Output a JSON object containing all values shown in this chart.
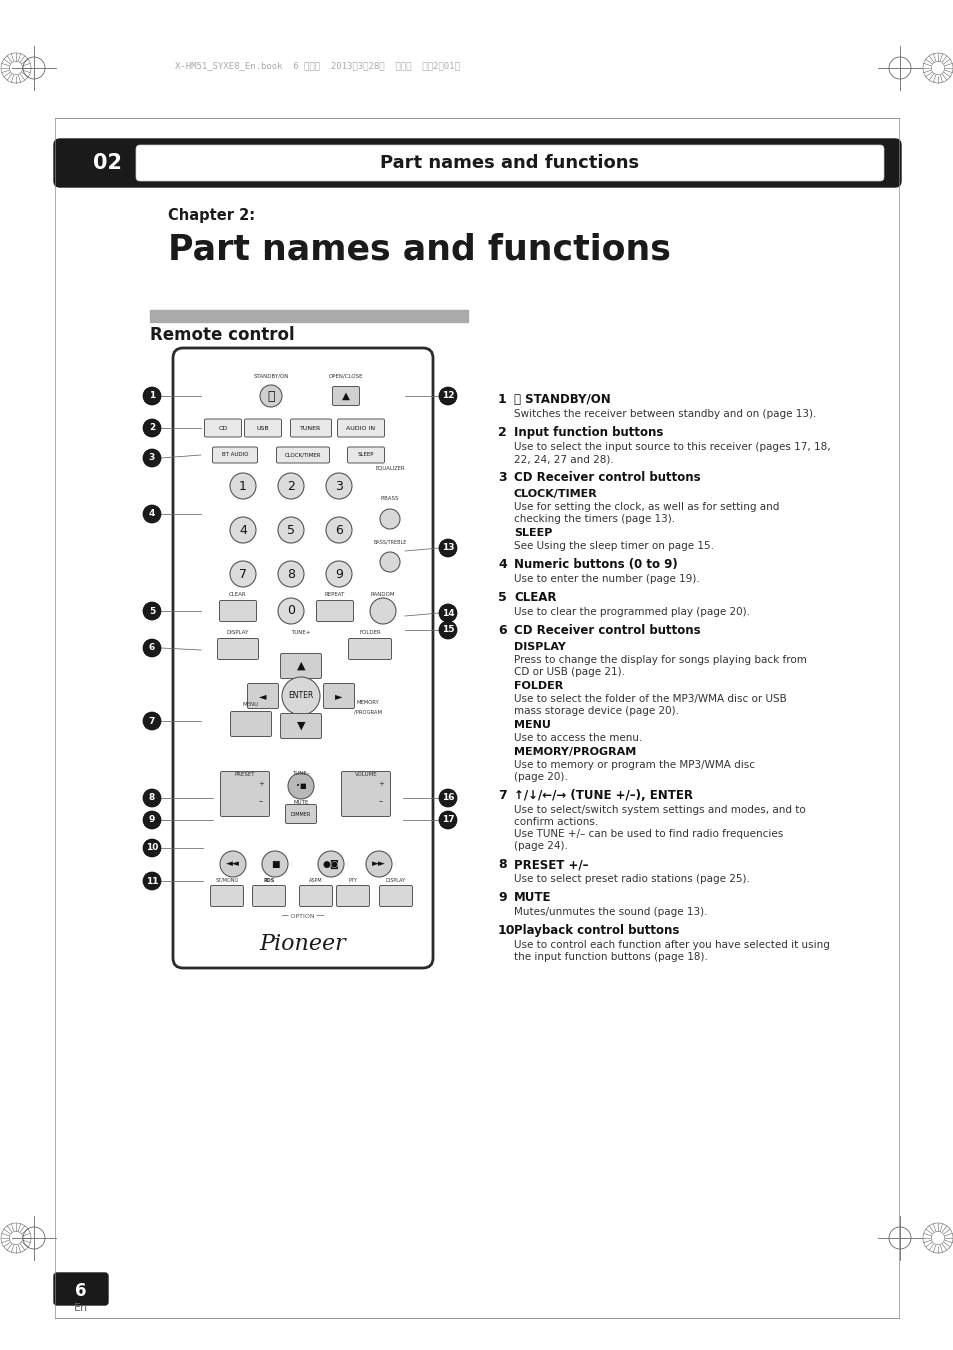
{
  "bg_color": "#ffffff",
  "header_bar_color": "#1a1a1a",
  "header_text": "02",
  "header_subtitle": "Part names and functions",
  "chapter_label": "Chapter 2:",
  "chapter_title": "Part names and functions",
  "section_title": "Remote control",
  "printer_text": "X-HM51_SYXE8_En.book  6 ページ  2013年3月28日  木曜日  午後2時01分",
  "right_col_items": [
    {
      "num": "1",
      "title": "⏻ STANDBY/ON",
      "body": "Switches the receiver between standby and on (page 13)."
    },
    {
      "num": "2",
      "title": "Input function buttons",
      "body": "Use to select the input source to this receiver (pages 17, 18,\n22, 24, 27 and 28)."
    },
    {
      "num": "3",
      "title": "CD Receiver control buttons",
      "sub_items": [
        {
          "sub": "CLOCK/TIMER",
          "body": "Use for setting the clock, as well as for setting and\nchecking the timers (page 13)."
        },
        {
          "sub": "SLEEP",
          "body": "See Using the sleep timer on page 15."
        }
      ]
    },
    {
      "num": "4",
      "title": "Numeric buttons (0 to 9)",
      "body": "Use to enter the number (page 19)."
    },
    {
      "num": "5",
      "title": "CLEAR",
      "body": "Use to clear the programmed play (page 20)."
    },
    {
      "num": "6",
      "title": "CD Receiver control buttons",
      "sub_items": [
        {
          "sub": "DISPLAY",
          "body": "Press to change the display for songs playing back from\nCD or USB (page 21)."
        },
        {
          "sub": "FOLDER",
          "body": "Use to select the folder of the MP3/WMA disc or USB\nmass storage device (page 20)."
        },
        {
          "sub": "MENU",
          "body": "Use to access the menu."
        },
        {
          "sub": "MEMORY/PROGRAM",
          "body": "Use to memory or program the MP3/WMA disc\n(page 20)."
        }
      ]
    },
    {
      "num": "7",
      "title": "↑/↓/←/→ (TUNE +/–), ENTER",
      "body": "Use to select/switch system settings and modes, and to\nconfirm actions.\nUse TUNE +/– can be used to find radio frequencies\n(page 24)."
    },
    {
      "num": "8",
      "title": "PRESET +/–",
      "body": "Use to select preset radio stations (page 25)."
    },
    {
      "num": "9",
      "title": "MUTE",
      "body": "Mutes/unmutes the sound (page 13)."
    },
    {
      "num": "10",
      "title": "Playback control buttons",
      "body": "Use to control each function after you have selected it using\nthe input function buttons (page 18)."
    }
  ],
  "page_number": "6",
  "page_en": "En"
}
